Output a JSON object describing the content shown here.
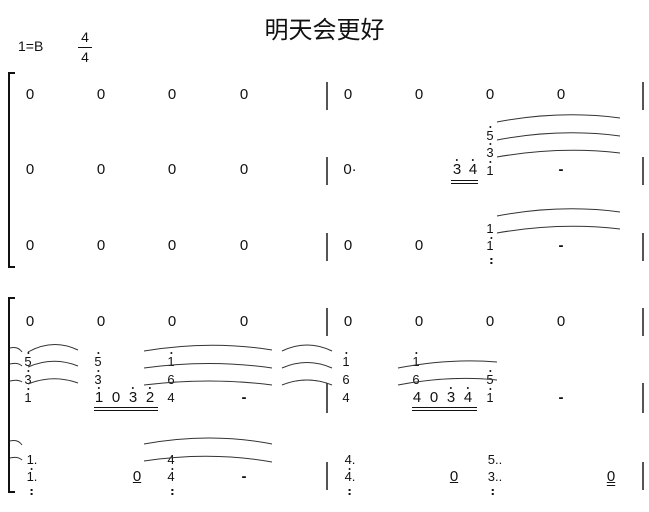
{
  "title": "明天会更好",
  "key": "1=B",
  "time": {
    "num": "4",
    "den": "4"
  },
  "sys1": {
    "r1": [
      "0",
      "0",
      "0",
      "0",
      "0",
      "0",
      "0",
      "0"
    ],
    "r2": [
      "0",
      "0",
      "0",
      "0",
      "0·",
      "3",
      "4",
      "1",
      "3",
      "5",
      "-"
    ],
    "r3": [
      "0",
      "0",
      "0",
      "0",
      "0",
      "0",
      "1",
      "1",
      "-"
    ]
  },
  "sys2": {
    "r1": [
      "0",
      "0",
      "0",
      "0",
      "0",
      "0",
      "0",
      "0"
    ],
    "r2": [
      "5",
      "3",
      "1",
      "5",
      "3",
      "1",
      "0",
      "3",
      "2",
      "1",
      "6",
      "4",
      "-",
      "1",
      "6",
      "4",
      "1",
      "6",
      "4",
      "0",
      "3",
      "4",
      "5",
      "1",
      "-"
    ],
    "r3": [
      "1.",
      "1.",
      "0",
      "4",
      "4",
      "-",
      "4.",
      "4.",
      "0",
      "5..",
      "3..",
      "0"
    ]
  }
}
